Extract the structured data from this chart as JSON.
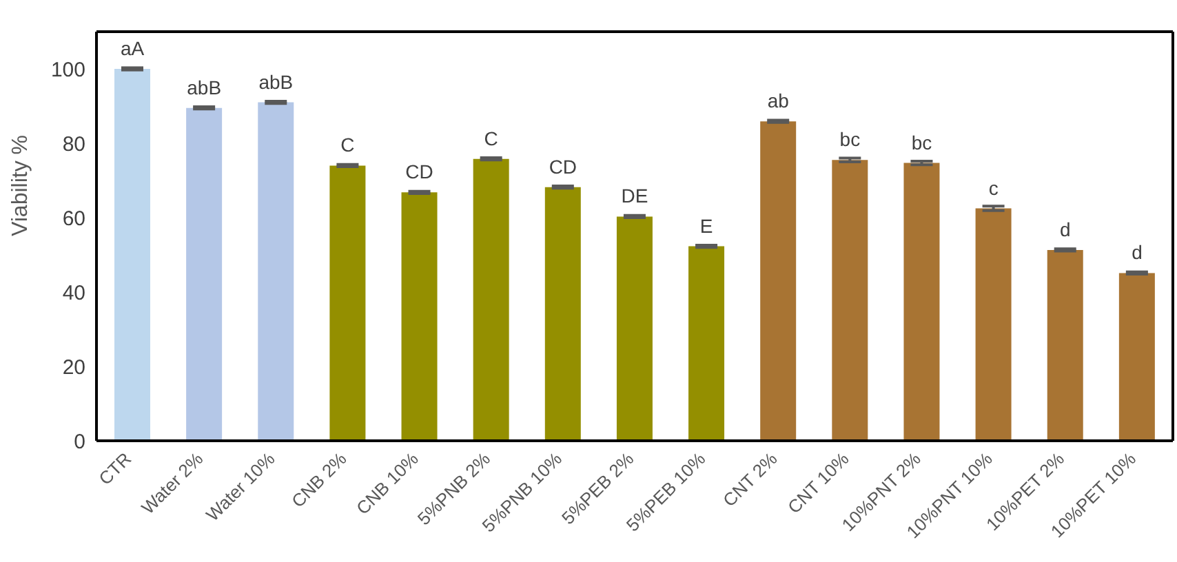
{
  "chart_data": {
    "type": "bar",
    "ylabel": "Viability  %",
    "categories": [
      "CTR",
      "Water 2%",
      "Water 10%",
      "CNB 2%",
      "CNB 10%",
      "5%PNB 2%",
      "5%PNB 10%",
      "5%PEB 2%",
      "5%PEB 10%",
      "CNT 2%",
      "CNT 10%",
      "10%PNT 2%",
      "10%PNT 10%",
      "10%PET 2%",
      "10%PET 10%"
    ],
    "values": [
      100,
      89.5,
      91,
      74,
      66.8,
      75.8,
      68.2,
      60.3,
      52.3,
      85.9,
      75.5,
      74.7,
      62.5,
      51.3,
      45.1
    ],
    "errors": [
      0.3,
      0.3,
      0.3,
      0.3,
      0.3,
      0.3,
      0.3,
      0.3,
      0.3,
      0.3,
      0.5,
      0.5,
      0.6,
      0.3,
      0.3
    ],
    "colors": [
      "#bdd7ee",
      "#b4c7e7",
      "#b4c7e7",
      "#948f00",
      "#948f00",
      "#948f00",
      "#948f00",
      "#948f00",
      "#948f00",
      "#a87433",
      "#a87433",
      "#a87433",
      "#a87433",
      "#a87433",
      "#a87433"
    ],
    "ylim": [
      0,
      110
    ],
    "yticks": [
      0,
      20,
      40,
      60,
      80,
      100
    ],
    "grid": false,
    "annotations": [
      {
        "text": "aA",
        "x": "CTR",
        "y": 100
      },
      {
        "text": "abB",
        "x": "Water 2%",
        "y": 89.5
      },
      {
        "text": "abB",
        "x": "Water 10%",
        "y": 91
      },
      {
        "text": "C",
        "x": "CNB 2%",
        "y": 74
      },
      {
        "text": "CD",
        "x": "CNB 10%",
        "y": 66.8
      },
      {
        "text": "C",
        "x": "5%PNB 2%",
        "y": 75.8
      },
      {
        "text": "CD",
        "x": "5%PNB 10%",
        "y": 68.2
      },
      {
        "text": "DE",
        "x": "5%PEB 2%",
        "y": 60.3
      },
      {
        "text": "E",
        "x": "5%PEB 10%",
        "y": 52.3
      },
      {
        "text": "ab",
        "x": "CNT 2%",
        "y": 85.9
      },
      {
        "text": "bc",
        "x": "CNT 10%",
        "y": 75.5
      },
      {
        "text": "bc",
        "x": "10%PNT 2%",
        "y": 74.7
      },
      {
        "text": "c",
        "x": "10%PNT 10%",
        "y": 62.5
      },
      {
        "text": "d",
        "x": "10%PET 2%",
        "y": 51.3
      },
      {
        "text": "d",
        "x": "10%PET 10%",
        "y": 45.1
      }
    ]
  }
}
